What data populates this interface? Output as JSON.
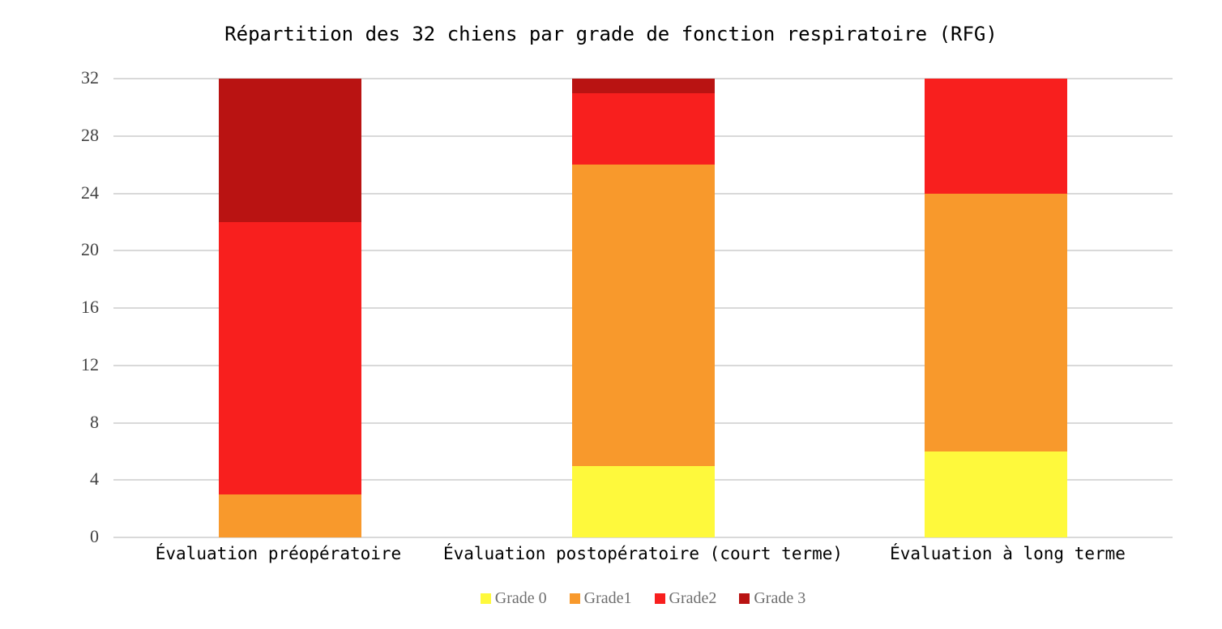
{
  "chart_data": {
    "type": "bar",
    "stacked": true,
    "title": "Répartition des 32 chiens par grade de fonction respiratoire (RFG)",
    "categories": [
      "Évaluation préopératoire",
      "Évaluation postopératoire (court terme)",
      "Évaluation à long terme"
    ],
    "series": [
      {
        "name": "Grade 0",
        "color": "#FEF93C",
        "values": [
          0,
          5,
          6
        ]
      },
      {
        "name": "Grade1",
        "color": "#F8992C",
        "values": [
          3,
          21,
          18
        ]
      },
      {
        "name": "Grade2",
        "color": "#F81F1E",
        "values": [
          19,
          5,
          8
        ]
      },
      {
        "name": "Grade 3",
        "color": "#B91312",
        "values": [
          10,
          1,
          0
        ]
      }
    ],
    "total_per_category": 32,
    "ylim": [
      0,
      32
    ],
    "yticks": [
      0,
      4,
      8,
      12,
      16,
      20,
      24,
      28,
      32
    ],
    "xlabel": "",
    "ylabel": "",
    "grid": true,
    "gridline_color": "#D9D9D9",
    "legend_position": "bottom",
    "background_color": "#FFFFFF"
  }
}
